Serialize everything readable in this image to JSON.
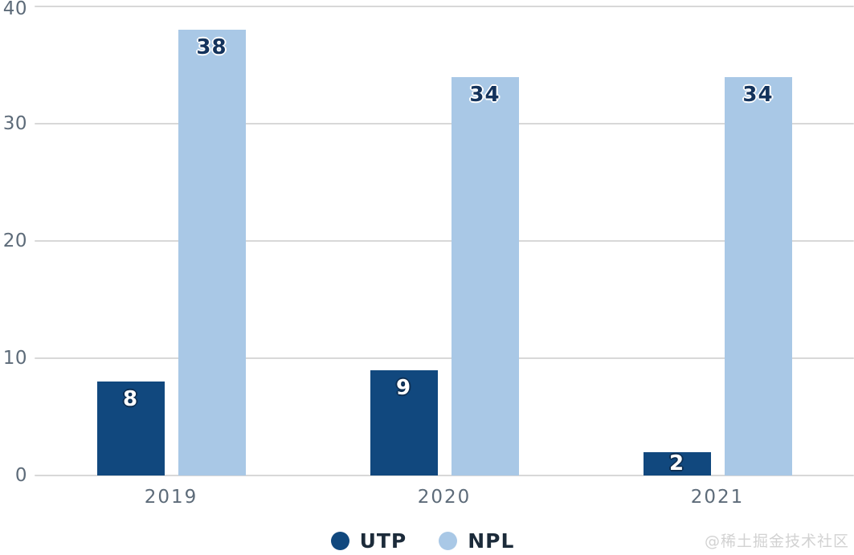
{
  "chart_data": {
    "type": "bar",
    "title": "",
    "categories": [
      "2019",
      "2020",
      "2021"
    ],
    "series": [
      {
        "name": "UTP",
        "color": "#11487E",
        "values": [
          8,
          9,
          2
        ],
        "value_label_style": "white-text-dark-outline"
      },
      {
        "name": "NPL",
        "color": "#A9C8E6",
        "values": [
          38,
          34,
          34
        ],
        "value_label_style": "dark-text-white-outline"
      }
    ],
    "xlabel": "",
    "ylabel": "",
    "ylim": [
      0,
      40
    ],
    "yticks": [
      0,
      10,
      20,
      30,
      40
    ],
    "grid": true,
    "bar_value_labels": true,
    "legend_position": "bottom"
  },
  "legend": {
    "items": [
      {
        "label": "UTP",
        "color": "#11487E"
      },
      {
        "label": "NPL",
        "color": "#A9C8E6"
      }
    ]
  },
  "watermark": {
    "text": "@稀土掘金技术社区",
    "color": "#D2D2D2"
  },
  "colors": {
    "background": "#FFFFFF",
    "gridline": "#D8D8D8",
    "axis_text": "#5D6B79",
    "value_label_on_dark": "#FFFFFF",
    "value_label_on_light": "#14335C",
    "legend_text": "#1C2B3A"
  }
}
